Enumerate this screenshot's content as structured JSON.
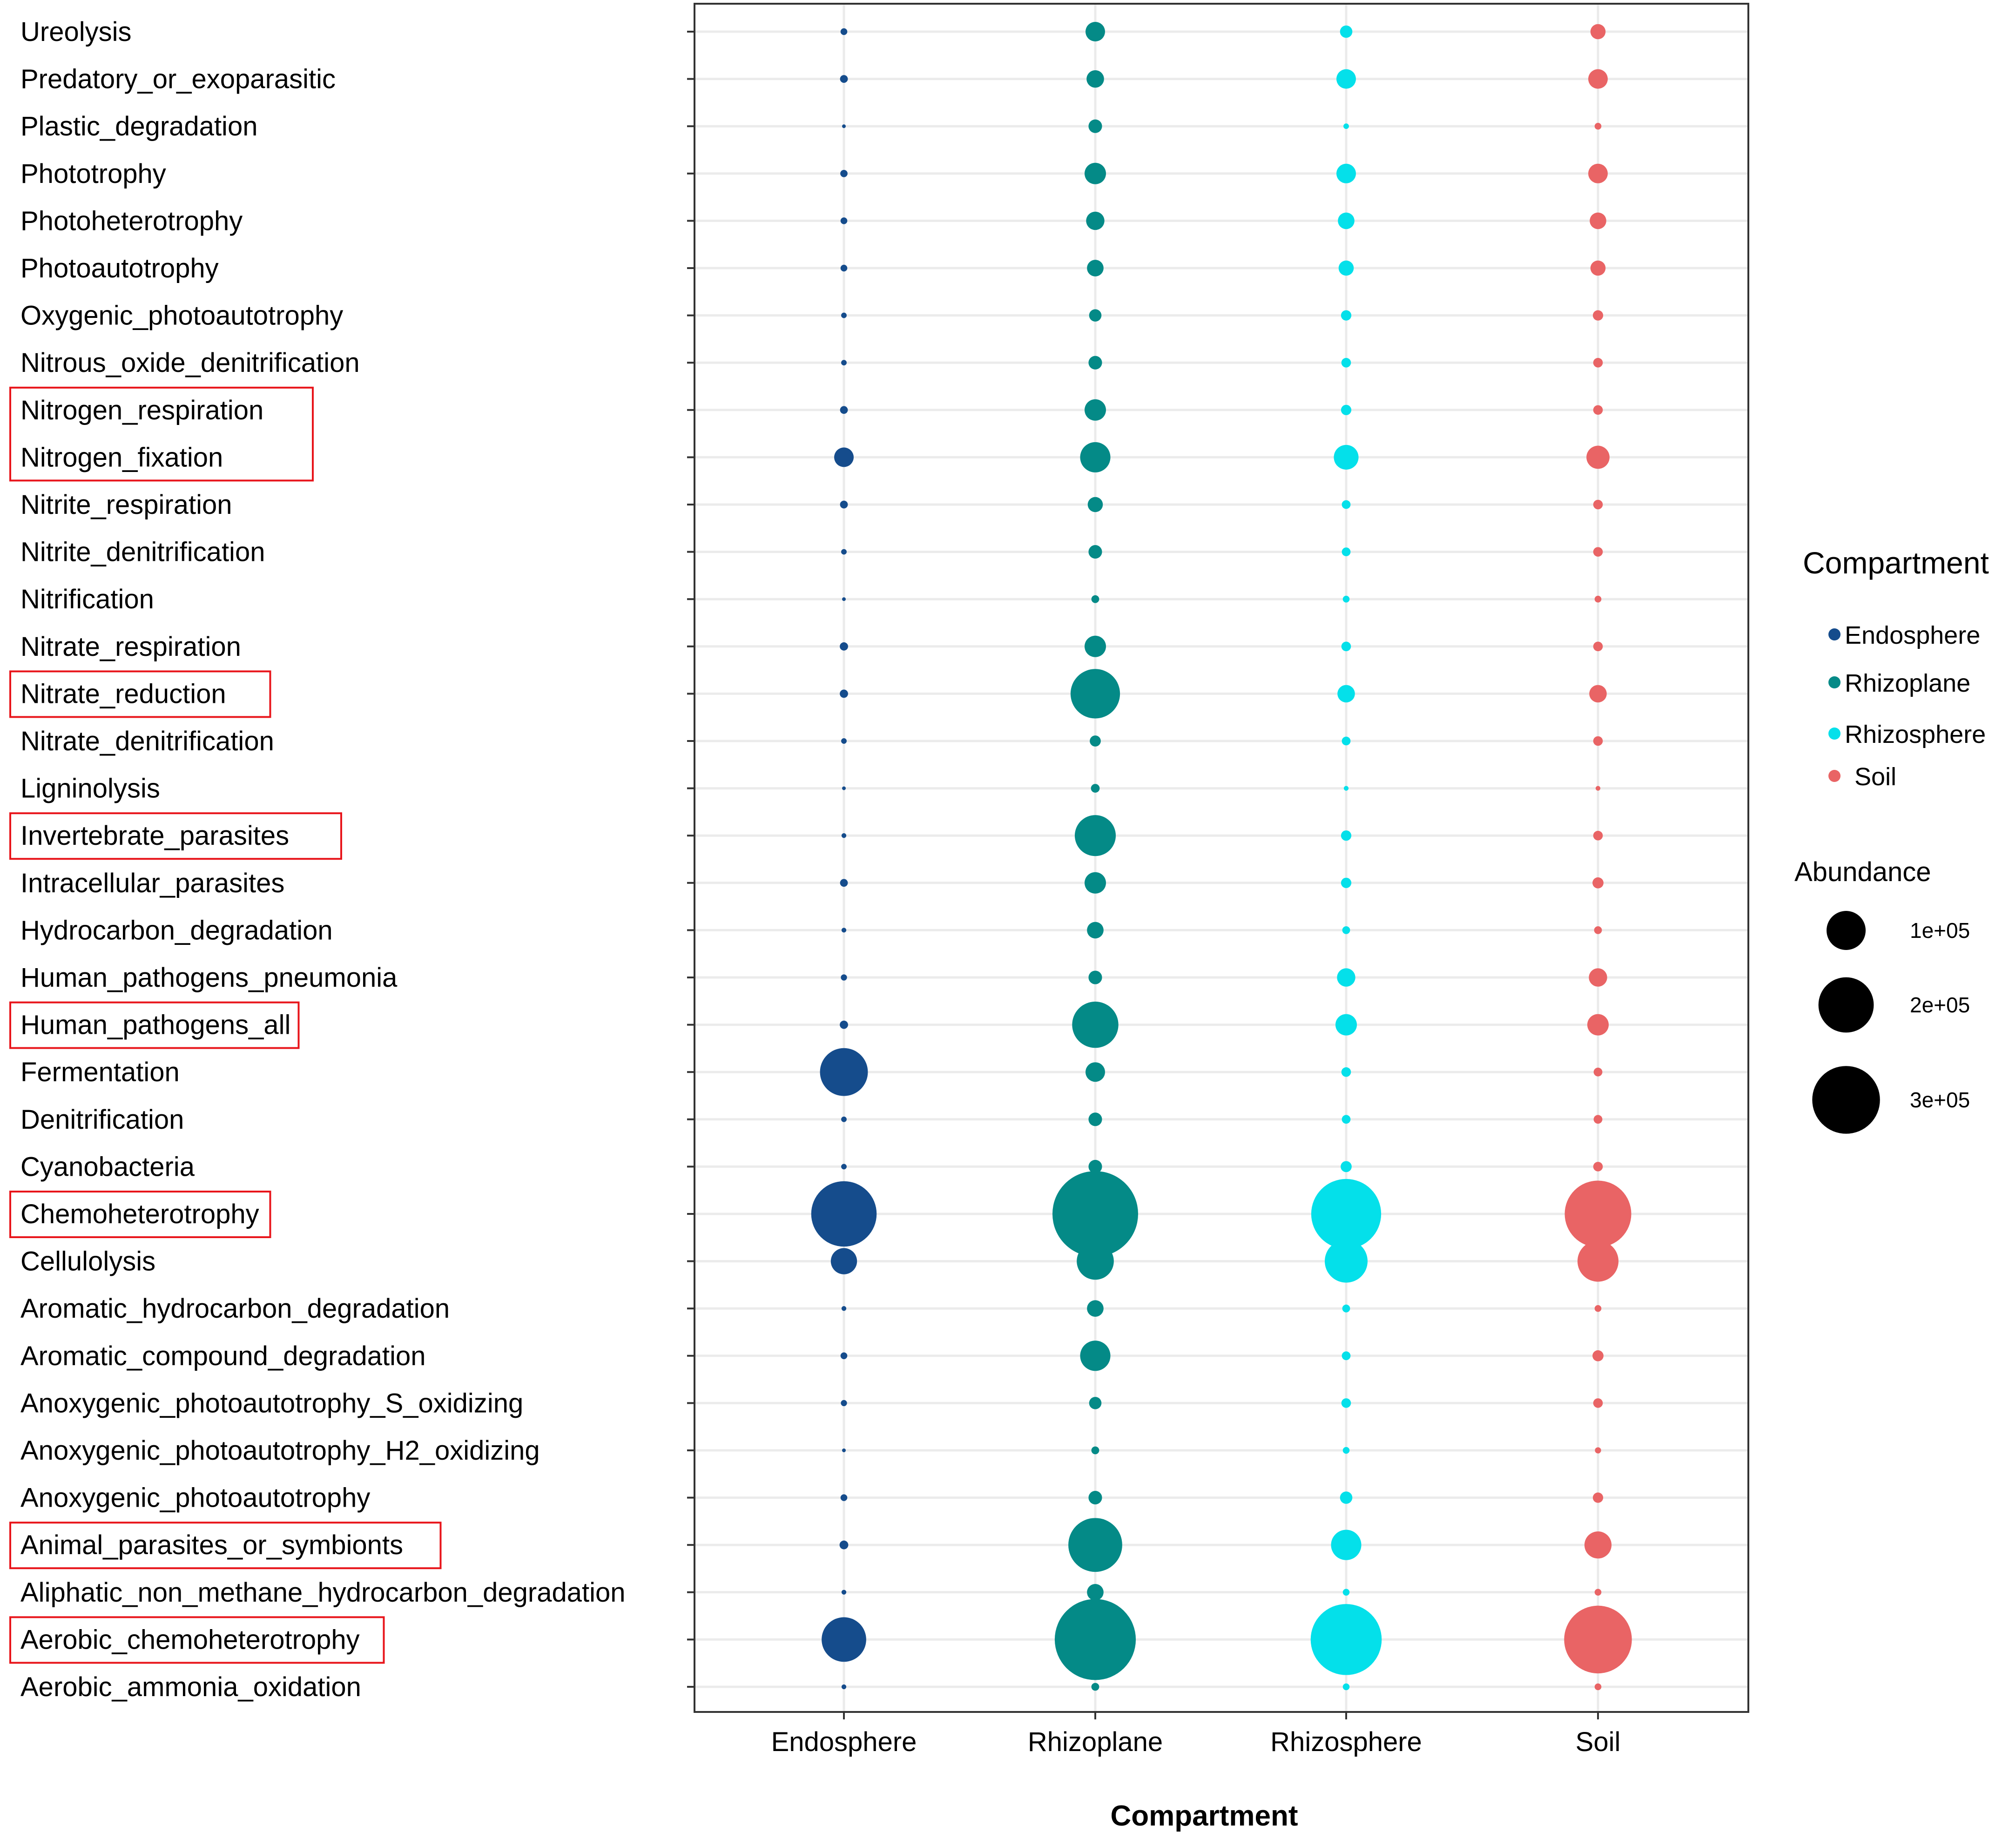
{
  "chart_data": {
    "type": "bubble",
    "title": "",
    "xlabel": "Compartment",
    "ylabel": "",
    "categories": [
      "Endosphere",
      "Rhizoplane",
      "Rhizosphere",
      "Soil"
    ],
    "functions": [
      "Ureolysis",
      "Predatory_or_exoparasitic",
      "Plastic_degradation",
      "Phototrophy",
      "Photoheterotrophy",
      "Photoautotrophy",
      "Oxygenic_photoautotrophy",
      "Nitrous_oxide_denitrification",
      "Nitrogen_respiration",
      "Nitrogen_fixation",
      "Nitrite_respiration",
      "Nitrite_denitrification",
      "Nitrification",
      "Nitrate_respiration",
      "Nitrate_reduction",
      "Nitrate_denitrification",
      "Ligninolysis",
      "Invertebrate_parasites",
      "Intracellular_parasites",
      "Hydrocarbon_degradation",
      "Human_pathogens_pneumonia",
      "Human_pathogens_all",
      "Fermentation",
      "Denitrification",
      "Cyanobacteria",
      "Chemoheterotrophy",
      "Cellulolysis",
      "Aromatic_hydrocarbon_degradation",
      "Aromatic_compound_degradation",
      "Anoxygenic_photoautotrophy_S_oxidizing",
      "Anoxygenic_photoautotrophy_H2_oxidizing",
      "Anoxygenic_photoautotrophy",
      "Animal_parasites_or_symbionts",
      "Aliphatic_non_methane_hydrocarbon_degradation",
      "Aerobic_chemoheterotrophy",
      "Aerobic_ammonia_oxidation"
    ],
    "highlighted": [
      "Nitrogen_respiration",
      "Nitrogen_fixation",
      "Nitrate_reduction",
      "Invertebrate_parasites",
      "Human_pathogens_all",
      "Chemoheterotrophy",
      "Animal_parasites_or_symbionts",
      "Aerobic_chemoheterotrophy"
    ],
    "series": [
      {
        "name": "Endosphere",
        "color": "#154c8c",
        "values": [
          3000,
          4000,
          500,
          3500,
          3000,
          3000,
          2000,
          2000,
          4000,
          25000,
          4000,
          2000,
          800,
          4500,
          4500,
          2000,
          800,
          1500,
          4000,
          1500,
          2500,
          4500,
          150000,
          2000,
          2000,
          280000,
          45000,
          1500,
          3000,
          2500,
          300,
          3000,
          5000,
          1500,
          130000,
          1500
        ]
      },
      {
        "name": "Rhizoplane",
        "color": "#048a87",
        "values": [
          25000,
          20000,
          12000,
          30000,
          22000,
          18000,
          10000,
          12000,
          30000,
          60000,
          15000,
          12000,
          4000,
          30000,
          160000,
          8000,
          5000,
          110000,
          30000,
          18000,
          12000,
          140000,
          25000,
          12000,
          12000,
          480000,
          90000,
          18000,
          60000,
          10000,
          4000,
          12000,
          190000,
          18000,
          430000,
          4000
        ]
      },
      {
        "name": "Rhizosphere",
        "color": "#04e0ea",
        "values": [
          10000,
          25000,
          2000,
          25000,
          18000,
          15000,
          7000,
          6000,
          7000,
          40000,
          5000,
          5000,
          3000,
          6000,
          20000,
          5000,
          1500,
          7000,
          7000,
          4000,
          22000,
          30000,
          6000,
          5000,
          8000,
          320000,
          120000,
          4000,
          5000,
          6000,
          3000,
          10000,
          60000,
          3000,
          330000,
          3000
        ]
      },
      {
        "name": "Soil",
        "color": "#e96465",
        "values": [
          15000,
          25000,
          3000,
          25000,
          18000,
          15000,
          7000,
          6000,
          6000,
          35000,
          6000,
          6000,
          3000,
          6000,
          20000,
          6000,
          1500,
          6000,
          8000,
          4000,
          22000,
          30000,
          5000,
          5000,
          6000,
          290000,
          110000,
          3000,
          8000,
          6000,
          2500,
          7000,
          48000,
          3000,
          300000,
          3000
        ]
      }
    ],
    "legend": {
      "color_title": "Compartment",
      "color_entries": [
        "Endosphere",
        "Rhizoplane",
        "Rhizosphere",
        "Soil"
      ],
      "size_title": "Abundance",
      "size_values": [
        100000,
        200000,
        300000
      ],
      "size_labels": [
        "1e+05",
        "2e+05",
        "3e+05"
      ],
      "placement": "right"
    },
    "grid": true,
    "highlight_color": "#e8151b"
  }
}
